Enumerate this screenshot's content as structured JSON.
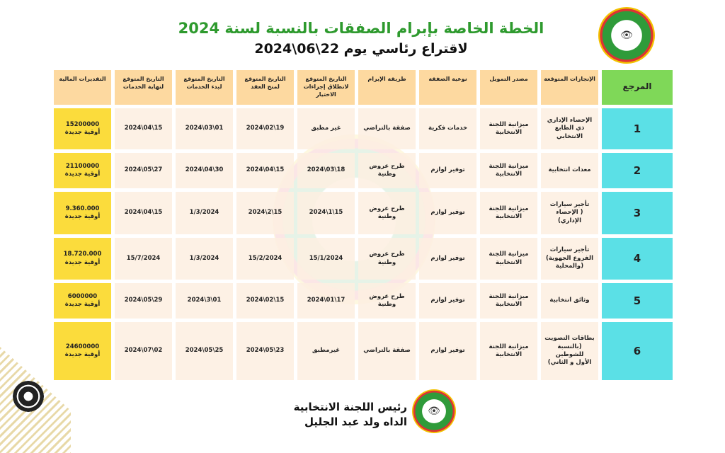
{
  "header": {
    "title": "الخطة الخاصة بإبرام الصفقات بالنسبة لسنة 2024",
    "subtitle": "لاقتراع رئاسي  يوم 22\\06\\2024"
  },
  "colors": {
    "header": "#fdd9a0",
    "ref_header": "#7fd858",
    "ref": "#5be0e6",
    "financial": "#fbdc3c",
    "title": "#2e9a2e"
  },
  "table": {
    "columns": [
      "المرجع",
      "الإنجازات المتوقعة",
      "مصدر التمويل",
      "نوعية الصفقة",
      "طريقة الإبرام",
      "التاريخ المتوقع لانطلاق إجراءات الاختيار",
      "التاريخ المتوقع لمنح العقد",
      "التاريخ المتوقع لبدء الخدمات",
      "التاريخ المتوقع لنهاية الخدمات",
      "التقديرات المالية"
    ],
    "rows": [
      [
        "1",
        "الإحصاء الإداري ذي الطابع الانتخابي",
        "ميزانية اللجنة الانتخابية",
        "خدمات فكرية",
        "صفقة بالتراضي",
        "غير مطبق",
        "19\\02\\2024",
        "01\\03\\2024",
        "15\\04\\2024",
        "15200000\nأوقية جديدة"
      ],
      [
        "2",
        "معدات انتخابية",
        "ميزانية اللجنة الانتخابية",
        "توفير لوازم",
        "طرح عروض وطنية",
        "18\\03\\2024",
        "15\\04\\2024",
        "30\\04\\2024",
        "27\\05\\2024",
        "21100000\nأوقية جديدة"
      ],
      [
        "3",
        "تأجير سيارات\n( الإحصاء الإداري)",
        "ميزانية اللجنة الانتخابية",
        "توفير لوازم",
        "طرح عروض وطنية",
        "15\\1\\2024",
        "15\\2\\2024",
        "1/3/2024",
        "15\\04\\2024",
        "9.360.000\nأوقية جديدة"
      ],
      [
        "4",
        "تأجير سيارات\nالفروع الجهوية)\n(والمحلية",
        "ميزانية اللجنة الانتخابية",
        "توفير لوازم",
        "طرح عروض وطنية",
        "15/1/2024",
        "15/2/2024",
        "1/3/2024",
        "15/7/2024",
        "18.720.000\nأوقية جديدة"
      ],
      [
        "5",
        "وثائق انتخابية",
        "ميزانية اللجنة الانتخابية",
        "توفير لوازم",
        "طرح عروض وطنية",
        "17\\01\\2024",
        "15\\02\\2024",
        "01\\3\\2024",
        "29\\05\\2024",
        "6000000\nأوقية جديدة"
      ],
      [
        "6",
        "بطاقات التصويت\n(بالنسبة للشوطين\nالأول و الثاني)",
        "ميزانية اللجنة الانتخابية",
        "توفير لوازم",
        "صفقة بالتراضي",
        "غيرمطبق",
        "23\\05\\2024",
        "25\\05\\2024",
        "02\\07\\2024",
        "24600000\nأوقية جديدة"
      ]
    ]
  },
  "footer": {
    "line1": "رئيس اللجنة الانتخابية",
    "line2": "الداه ولد عبد الجليل"
  },
  "icons": {
    "logo": "commission-seal-eye-icon",
    "corner": "islamic-ornament-icon"
  }
}
